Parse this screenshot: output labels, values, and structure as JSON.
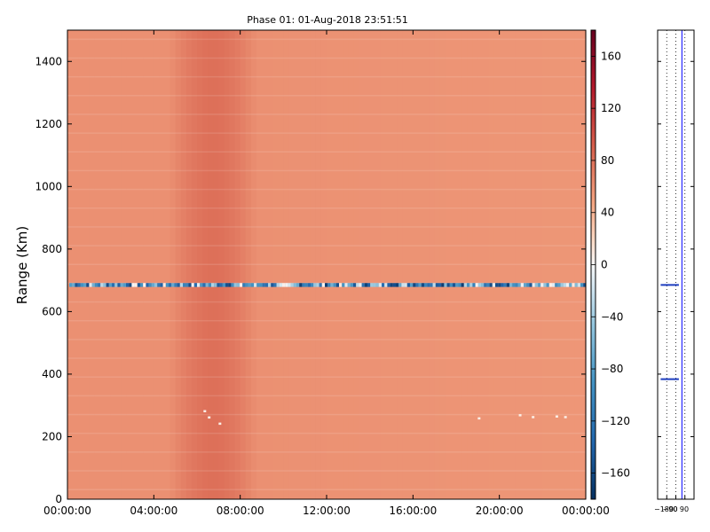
{
  "chart_data": [
    {
      "type": "heatmap",
      "title": "Phase 01: 01-Aug-2018 23:51:51",
      "xlabel": "",
      "ylabel": "Range (Km)",
      "x_ticks": [
        "00:00:00",
        "04:00:00",
        "08:00:00",
        "12:00:00",
        "16:00:00",
        "20:00:00",
        "00:00:00"
      ],
      "x_tick_hours": [
        0,
        4,
        8,
        12,
        16,
        20,
        24
      ],
      "xlim_hours": [
        0,
        24
      ],
      "y_ticks": [
        0,
        200,
        400,
        600,
        800,
        1000,
        1200,
        1400
      ],
      "ylim": [
        0,
        1500
      ],
      "value_range": [
        -180,
        180
      ],
      "colormap": "RdBu_r",
      "colorbar_ticks": [
        160,
        120,
        80,
        40,
        0,
        -40,
        -80,
        -120,
        -160
      ],
      "colorbar_labels": [
        "160",
        "120",
        "80",
        "40",
        "0",
        "−40",
        "−80",
        "−120",
        "−160"
      ],
      "background_phase": 60,
      "warm_band": {
        "from_hour": 5.5,
        "to_hour": 8.0,
        "phase": 80
      },
      "negative_band": {
        "range_km": 685,
        "phase_min": -170,
        "phase_max": 10
      },
      "grid": false
    },
    {
      "type": "line",
      "title": "",
      "xlim": [
        -180,
        180
      ],
      "x_ticks": [
        -180,
        -90,
        0,
        90
      ],
      "x_tick_labels": [
        "−180",
        "−90",
        "0",
        "90"
      ],
      "vertical_dotted_lines": [
        -180,
        -90,
        0,
        90
      ],
      "ylim": [
        0,
        1500
      ],
      "series": [
        {
          "x": [
            60,
            60,
            60,
            60,
            60,
            60,
            60,
            60,
            60,
            60,
            60,
            60,
            60,
            60,
            60,
            60,
            60
          ],
          "y": [
            0,
            100,
            200,
            300,
            381,
            384,
            387,
            400,
            500,
            600,
            682,
            685,
            688,
            800,
            1000,
            1200,
            1500
          ]
        }
      ],
      "spikes": [
        {
          "range_km": 685,
          "x_from": -150,
          "x_to": 30
        },
        {
          "range_km": 384,
          "x_from": -150,
          "x_to": 30
        }
      ],
      "colors": {
        "line": "#0000ff"
      }
    }
  ]
}
